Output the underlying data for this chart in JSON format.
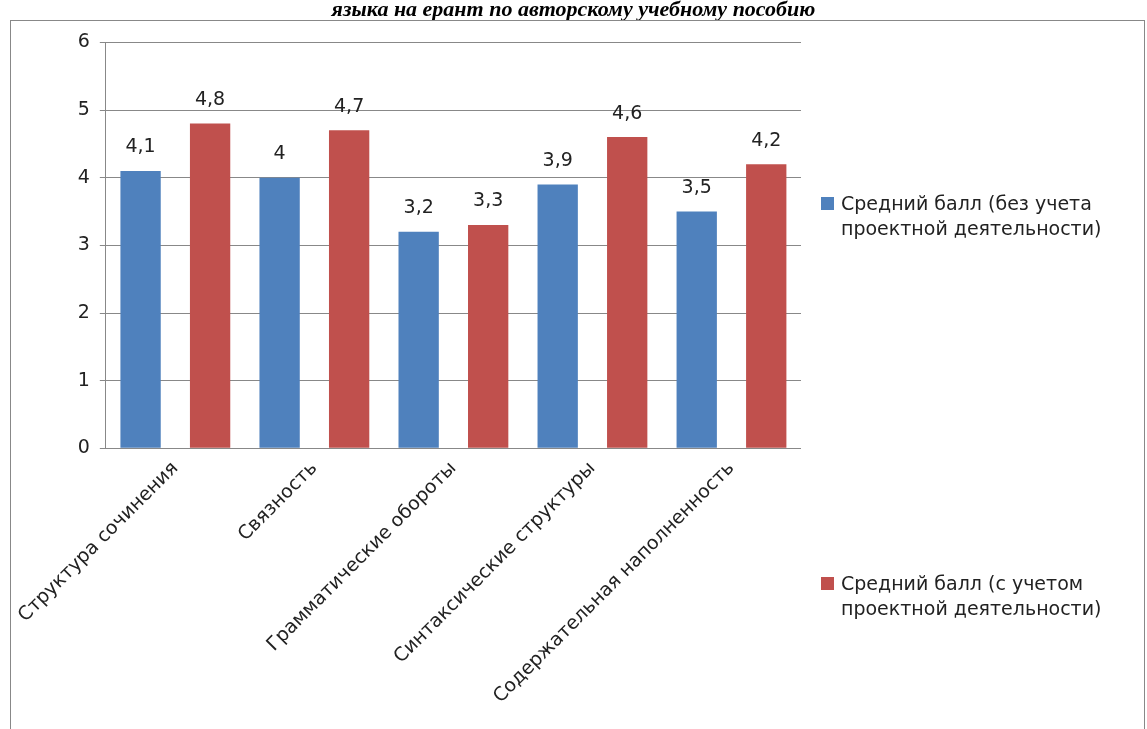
{
  "chart_data": {
    "type": "bar",
    "title": "языка на ерант по авторскому учебному пособию",
    "categories": [
      "Структура сочинения",
      "Связность",
      "Грамматические обороты",
      "Синтаксические структуры",
      "Содержательная наполненность"
    ],
    "series": [
      {
        "name": "Средний балл (без учета проектной деятельности)",
        "color": "#4f81bd",
        "values": [
          4.1,
          4,
          3.2,
          3.9,
          3.5
        ],
        "value_labels": [
          "4,1",
          "4",
          "3,2",
          "3,9",
          "3,5"
        ]
      },
      {
        "name": "Средний балл (с учетом проектной деятельности)",
        "color": "#c0504d",
        "values": [
          4.8,
          4.7,
          3.3,
          4.6,
          4.2
        ],
        "value_labels": [
          "4,8",
          "4,7",
          "3,3",
          "4,6",
          "4,2"
        ]
      }
    ],
    "ylim": [
      0,
      6
    ],
    "yticks": [
      0,
      1,
      2,
      3,
      4,
      5,
      6
    ],
    "grid": "y",
    "legend": "right"
  }
}
